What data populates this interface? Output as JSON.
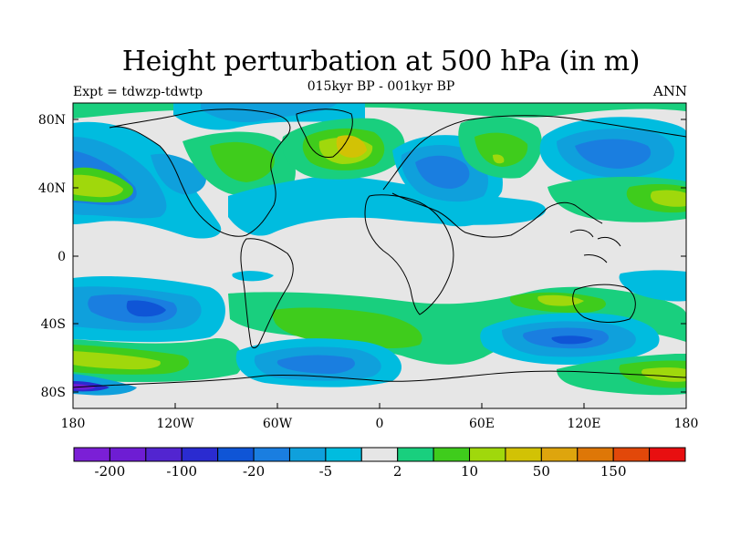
{
  "header": {
    "title": "Height perturbation at 500 hPa (in m)",
    "subtitle": "015kyr BP - 001kyr BP",
    "left_label": "Expt = tdwzp-tdwtp",
    "right_label": "ANN"
  },
  "map": {
    "projection": "cylindrical-equidistant",
    "background_color": "#e6e6e6",
    "lat_ticks": [
      "80N",
      "40N",
      "0",
      "40S",
      "80S"
    ],
    "lon_ticks": [
      "180",
      "120W",
      "60W",
      "0",
      "60E",
      "120E",
      "180"
    ],
    "colors": {
      "c_m200": "#7b1fd6",
      "c_m150": "#6e1dd3",
      "c_m100": "#5225d0",
      "c_m50": "#2a2bd0",
      "c_m20": "#0f55d6",
      "c_m10": "#1a7ee0",
      "c_m5": "#0fa0dc",
      "c_m2": "#00bcdf",
      "c_0": "#e6e6e6",
      "c_p2": "#19cf7e",
      "c_p5": "#3fcc1c",
      "c_p10": "#a0d80c",
      "c_p20": "#d2c205",
      "c_p50": "#dea50d",
      "c_p100": "#de7707",
      "c_p150": "#e2480a",
      "c_p200": "#e80f10"
    }
  },
  "colorbar": {
    "colors": [
      "#7b1fd6",
      "#6e1dd3",
      "#5225d0",
      "#2a2bd0",
      "#0f55d6",
      "#1a7ee0",
      "#0fa0dc",
      "#00bcdf",
      "#e6e6e6",
      "#19cf7e",
      "#3fcc1c",
      "#a0d80c",
      "#d2c205",
      "#dea50d",
      "#de7707",
      "#e2480a",
      "#e80f10"
    ],
    "labels": [
      "-200",
      "-100",
      "-20",
      "-5",
      "2",
      "10",
      "50",
      "150"
    ]
  }
}
